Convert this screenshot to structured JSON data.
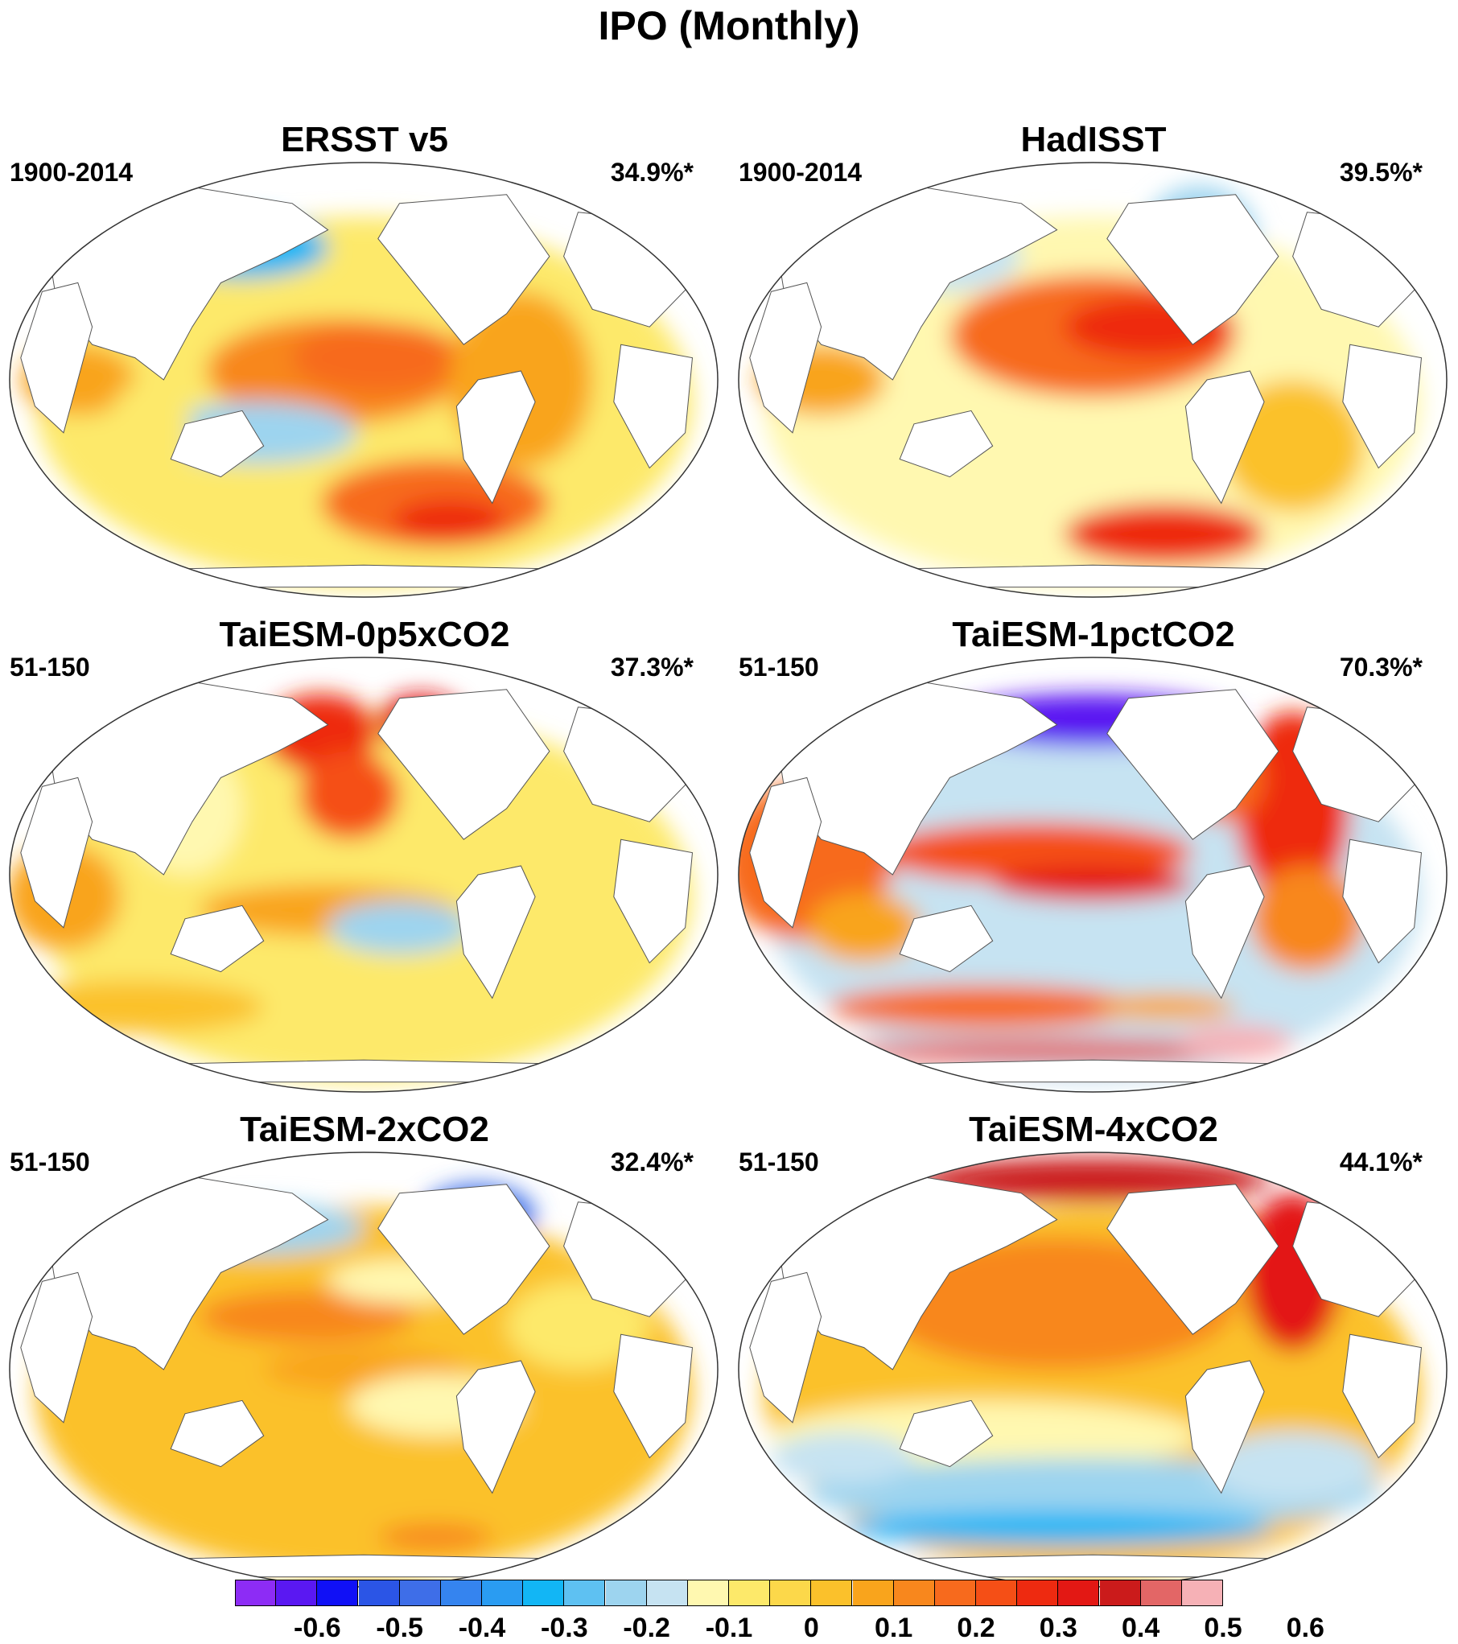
{
  "figure_title": "IPO (Monthly)",
  "panels": [
    {
      "title": "ERSST v5",
      "period": "1900-2014",
      "variance": "34.9%*"
    },
    {
      "title": "HadISST",
      "period": "1900-2014",
      "variance": "39.5%*"
    },
    {
      "title": "TaiESM-0p5xCO2",
      "period": "51-150",
      "variance": "37.3%*"
    },
    {
      "title": "TaiESM-1pctCO2",
      "period": "51-150",
      "variance": "70.3%*"
    },
    {
      "title": "TaiESM-2xCO2",
      "period": "51-150",
      "variance": "32.4%*"
    },
    {
      "title": "TaiESM-4xCO2",
      "period": "51-150",
      "variance": "44.1%*"
    }
  ],
  "colorbar": {
    "tick_labels": [
      "-0.6",
      "-0.5",
      "-0.4",
      "-0.3",
      "-0.2",
      "-0.1",
      "0",
      "0.1",
      "0.2",
      "0.3",
      "0.4",
      "0.5",
      "0.6"
    ],
    "colors": [
      "#8d2cf5",
      "#5a18f2",
      "#1010f6",
      "#2b55e6",
      "#3e6ee8",
      "#3584ef",
      "#2a9cf2",
      "#12b6f5",
      "#5ec1f2",
      "#9dd4ef",
      "#c6e3f2",
      "#fff8b0",
      "#fde96a",
      "#fcd84a",
      "#fbc12b",
      "#f9a41c",
      "#f8871d",
      "#f76a1d",
      "#f54f16",
      "#ee2a10",
      "#e31814",
      "#cb1b1b",
      "#e36666",
      "#f6b1b6"
    ]
  },
  "chart_data": {
    "type": "heatmap",
    "title": "IPO (Monthly)",
    "projection": "Robinson (global, centered on Pacific)",
    "levels": [
      -0.65,
      -0.6,
      -0.55,
      -0.5,
      -0.45,
      -0.4,
      -0.35,
      -0.3,
      -0.25,
      -0.2,
      -0.15,
      -0.1,
      -0.05,
      0,
      0.05,
      0.1,
      0.15,
      0.2,
      0.25,
      0.3,
      0.35,
      0.4,
      0.45,
      0.5,
      0.55,
      0.6,
      0.65
    ],
    "panels": [
      {
        "name": "ERSST v5",
        "period": "1900-2014",
        "explained_variance_pct": 34.9,
        "significant": true
      },
      {
        "name": "HadISST",
        "period": "1900-2014",
        "explained_variance_pct": 39.5,
        "significant": true
      },
      {
        "name": "TaiESM-0p5xCO2",
        "period": "51-150",
        "explained_variance_pct": 37.3,
        "significant": true
      },
      {
        "name": "TaiESM-1pctCO2",
        "period": "51-150",
        "explained_variance_pct": 70.3,
        "significant": true
      },
      {
        "name": "TaiESM-2xCO2",
        "period": "51-150",
        "explained_variance_pct": 32.4,
        "significant": true
      },
      {
        "name": "TaiESM-4xCO2",
        "period": "51-150",
        "explained_variance_pct": 44.1,
        "significant": true
      }
    ]
  }
}
